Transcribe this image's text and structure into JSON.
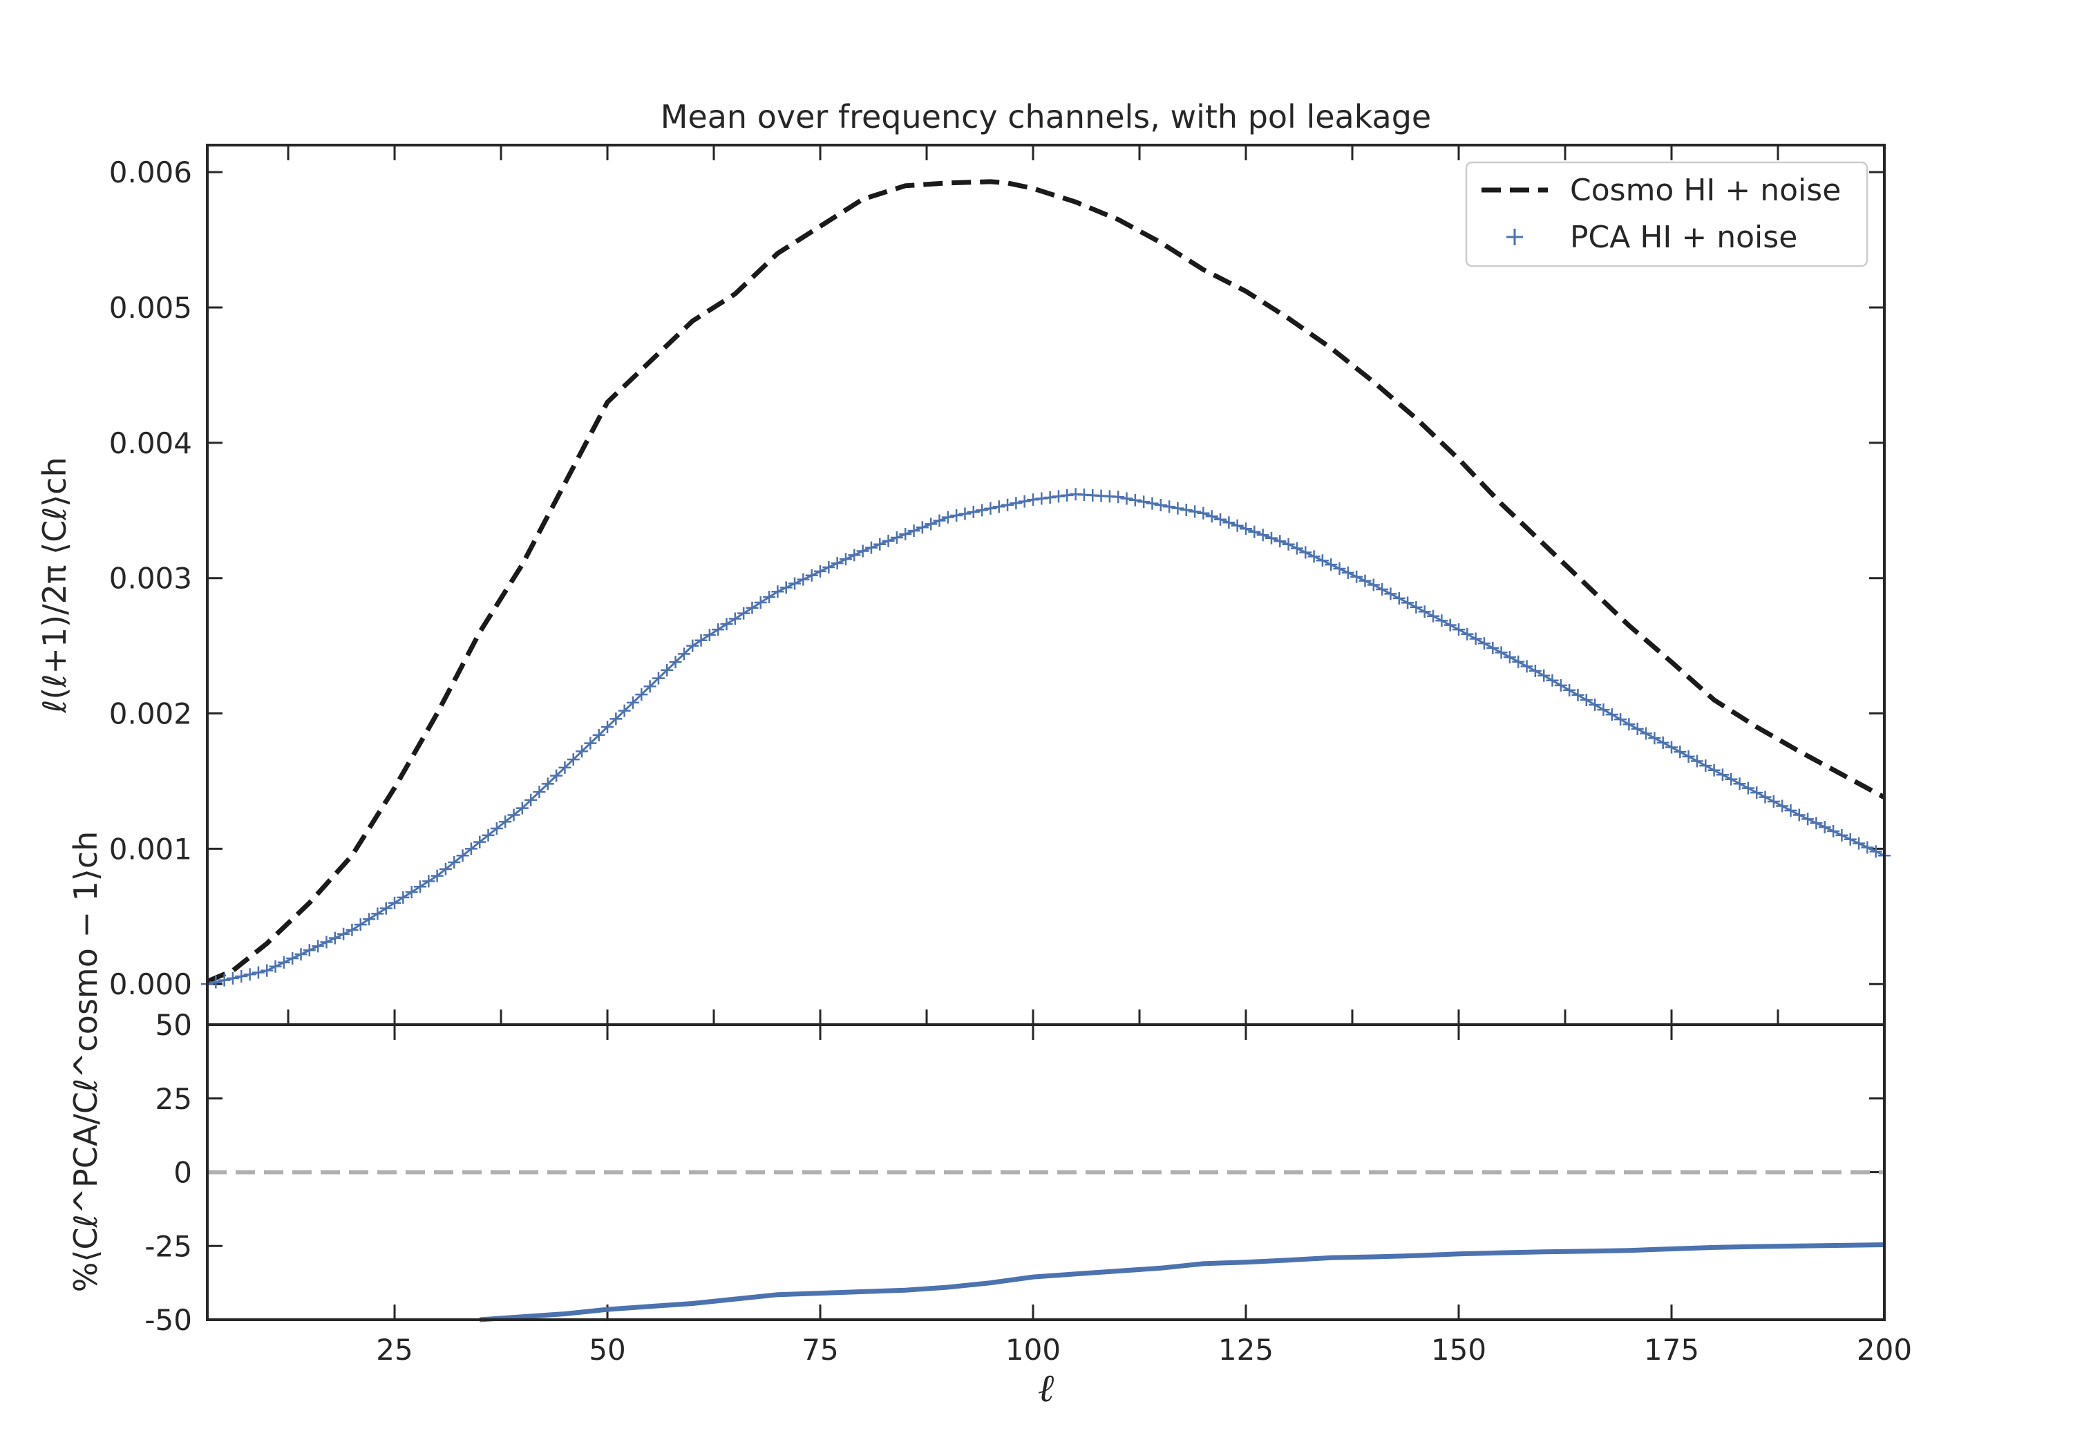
{
  "chart_data": [
    {
      "type": "line",
      "title": "Mean over frequency channels, with pol leakage",
      "ylabel": "ℓ(ℓ+1)/2π ⟨Cℓ⟩ch",
      "xlim": [
        3,
        200
      ],
      "ylim": [
        -0.0003,
        0.0062
      ],
      "yticks": [
        "0.000",
        "0.001",
        "0.002",
        "0.003",
        "0.004",
        "0.005",
        "0.006"
      ],
      "grid": false,
      "legend_position": "top-right",
      "series": [
        {
          "name": "Cosmo HI + noise",
          "style": "dashed",
          "color": "#1a1a1a",
          "x": [
            3,
            6,
            10,
            15,
            20,
            25,
            30,
            35,
            40,
            45,
            50,
            55,
            60,
            65,
            70,
            75,
            80,
            85,
            90,
            95,
            97,
            100,
            105,
            110,
            115,
            120,
            125,
            130,
            135,
            140,
            145,
            150,
            155,
            160,
            165,
            170,
            175,
            180,
            185,
            190,
            195,
            200
          ],
          "y": [
            2e-05,
            0.0001,
            0.0003,
            0.0006,
            0.00095,
            0.00145,
            0.002,
            0.0026,
            0.0031,
            0.0037,
            0.0043,
            0.0046,
            0.0049,
            0.0051,
            0.0054,
            0.0056,
            0.0058,
            0.0059,
            0.00592,
            0.00593,
            0.00592,
            0.00588,
            0.00578,
            0.00565,
            0.00548,
            0.00528,
            0.00512,
            0.00492,
            0.0047,
            0.00445,
            0.00418,
            0.00388,
            0.00355,
            0.00325,
            0.00295,
            0.00265,
            0.00238,
            0.0021,
            0.0019,
            0.00172,
            0.00155,
            0.00138
          ]
        },
        {
          "name": "PCA HI + noise",
          "style": "plus-markers",
          "color": "#4c72b0",
          "x": [
            3,
            10,
            20,
            30,
            40,
            50,
            60,
            70,
            80,
            90,
            100,
            105,
            110,
            120,
            130,
            140,
            150,
            160,
            170,
            180,
            190,
            200
          ],
          "y": [
            0.0,
            0.0001,
            0.0004,
            0.0008,
            0.0013,
            0.0019,
            0.0025,
            0.0029,
            0.0032,
            0.00345,
            0.00358,
            0.00362,
            0.0036,
            0.00348,
            0.00325,
            0.00295,
            0.00262,
            0.00228,
            0.00192,
            0.00158,
            0.00125,
            0.00095
          ]
        }
      ]
    },
    {
      "type": "line",
      "title": "",
      "xlabel": "ℓ",
      "ylabel": "%⟨Cℓ^PCA/Cℓ^cosmo − 1⟩ch",
      "xlim": [
        3,
        200
      ],
      "ylim": [
        -50,
        50
      ],
      "xticks": [
        "25",
        "50",
        "75",
        "100",
        "125",
        "150",
        "175",
        "200"
      ],
      "yticks": [
        "-50",
        "-25",
        "0",
        "25",
        "50"
      ],
      "grid": false,
      "series": [
        {
          "style": "dashed",
          "color": "#b0b0b0",
          "x": [
            3,
            200
          ],
          "y": [
            0,
            0
          ]
        },
        {
          "style": "solid",
          "color": "#4c72b0",
          "x": [
            35,
            40,
            45,
            50,
            55,
            60,
            65,
            70,
            75,
            80,
            85,
            90,
            95,
            100,
            105,
            110,
            115,
            120,
            125,
            130,
            135,
            140,
            145,
            150,
            155,
            160,
            165,
            170,
            175,
            180,
            185,
            190,
            195,
            200
          ],
          "y": [
            -50,
            -49,
            -48,
            -46.5,
            -45.5,
            -44.5,
            -43,
            -41.5,
            -41,
            -40.5,
            -40,
            -39,
            -37.5,
            -35.5,
            -34.5,
            -33.5,
            -32.5,
            -31,
            -30.5,
            -29.8,
            -29,
            -28.7,
            -28.3,
            -27.7,
            -27.3,
            -27,
            -26.8,
            -26.5,
            -26,
            -25.5,
            -25.2,
            -25,
            -24.8,
            -24.6
          ]
        }
      ]
    }
  ]
}
